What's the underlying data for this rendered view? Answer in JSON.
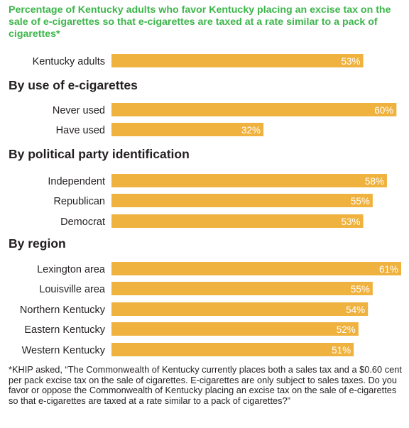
{
  "title": "Percentage of Kentucky adults who favor Kentucky placing an excise tax on the sale of e-cigarettes so that e-cigarettes are taxed at a rate similar to a pack of cigarettes*",
  "footnote": "*KHIP asked, “The Commonwealth of Kentucky currently places both a sales tax and a $0.60 cent per pack excise tax on the sale of cigarettes. E-cigarettes are only subject to sales taxes. Do you favor or oppose the Commonwealth of Kentucky placing an excise tax on the sale of e-cigarettes so that e-cigarettes are taxed at a rate similar to a pack of cigarettes?”",
  "colors": {
    "bar": "#f0b23e",
    "title": "#3cb54a",
    "label": "#231f20",
    "value_text": "#ffffff"
  },
  "chart_data": {
    "type": "bar",
    "orientation": "horizontal",
    "value_suffix": "%",
    "xlim": [
      0,
      61
    ],
    "groups": [
      {
        "heading": "",
        "categories": [
          "Kentucky adults"
        ],
        "values": [
          53
        ]
      },
      {
        "heading": "By use of e-cigarettes",
        "categories": [
          "Never used",
          "Have used"
        ],
        "values": [
          60,
          32
        ]
      },
      {
        "heading": "By political party identification",
        "categories": [
          "Independent",
          "Republican",
          "Democrat"
        ],
        "values": [
          58,
          55,
          53
        ]
      },
      {
        "heading": "By region",
        "categories": [
          "Lexington area",
          "Louisville area",
          "Northern Kentucky",
          "Eastern Kentucky",
          "Western Kentucky"
        ],
        "values": [
          61,
          55,
          54,
          52,
          51
        ]
      }
    ]
  }
}
